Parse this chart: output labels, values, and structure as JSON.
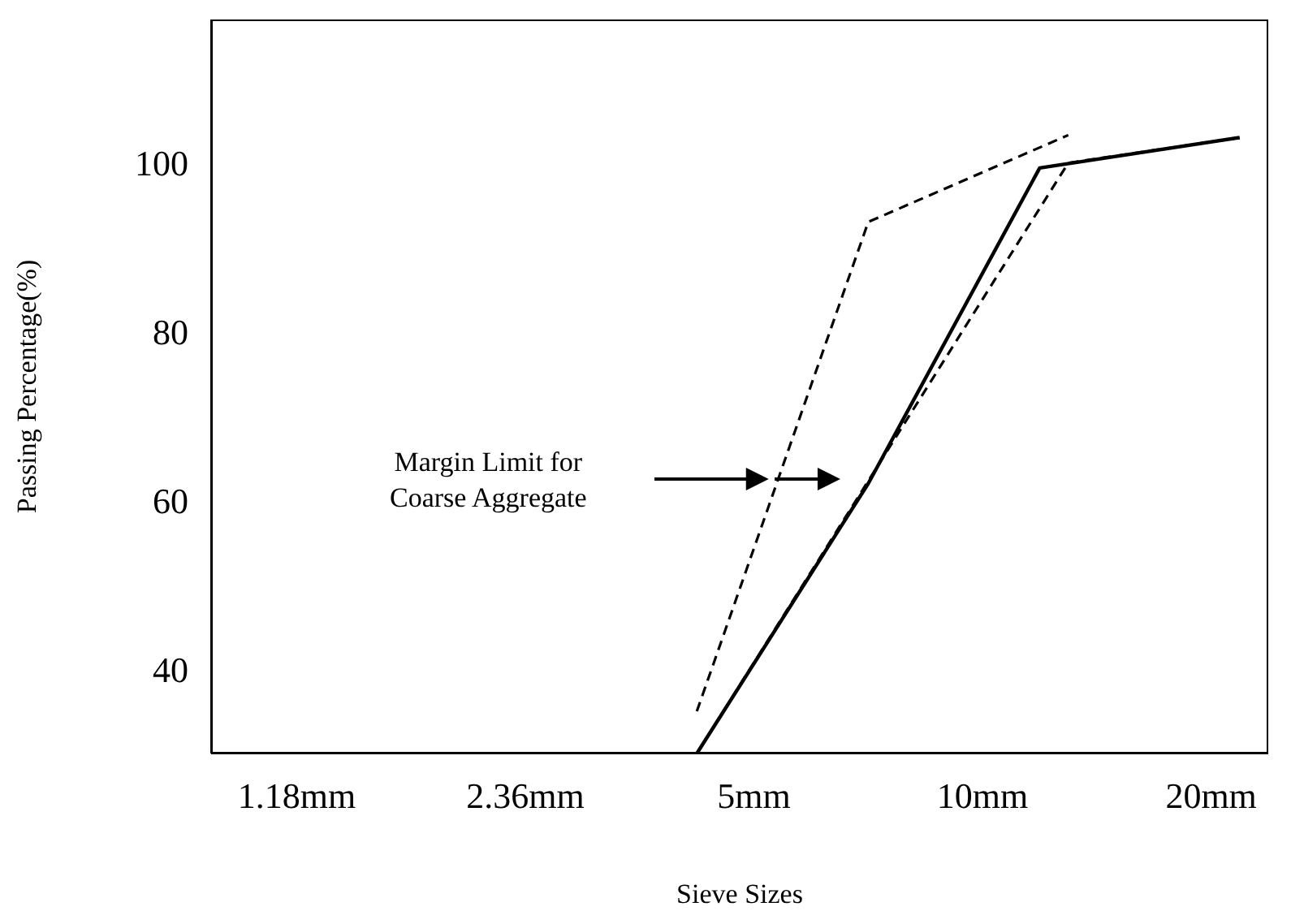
{
  "chart_data": {
    "type": "line",
    "xlabel": "Sieve Sizes",
    "ylabel": "Passing Percentage(%)",
    "categories": [
      null,
      null,
      null,
      "1.18mm",
      null,
      null,
      null,
      null,
      null,
      null,
      null,
      "2.36mm",
      null,
      null,
      null,
      null,
      null,
      null,
      null,
      "5mm",
      null,
      null,
      null,
      null,
      null,
      null,
      null,
      "10mm",
      null,
      null,
      null,
      null,
      null,
      null,
      null,
      "20mm",
      null,
      null
    ],
    "ylim": [
      30,
      117
    ],
    "yticks": [
      40,
      60,
      80,
      100
    ],
    "series": [
      {
        "color": "#000000",
        "line_style": "solid",
        "values": [
          null,
          null,
          null,
          null,
          null,
          null,
          null,
          null,
          null,
          null,
          null,
          null,
          null,
          null,
          null,
          null,
          null,
          30,
          null,
          null,
          null,
          null,
          null,
          62,
          null,
          null,
          null,
          null,
          null,
          99.4,
          null,
          null,
          null,
          null,
          null,
          null,
          103,
          null
        ]
      },
      {
        "color": "#000000",
        "line_style": "dashed",
        "values": [
          null,
          null,
          null,
          null,
          null,
          null,
          null,
          null,
          null,
          null,
          null,
          null,
          null,
          null,
          null,
          null,
          null,
          35,
          null,
          null,
          null,
          null,
          null,
          93,
          null,
          null,
          null,
          null,
          null,
          null,
          103.3,
          null,
          null,
          null,
          null,
          null,
          null,
          null
        ]
      },
      {
        "color": "#000000",
        "line_style": "dashed",
        "values": [
          null,
          null,
          null,
          null,
          null,
          null,
          null,
          null,
          null,
          null,
          null,
          null,
          null,
          null,
          null,
          null,
          null,
          30,
          null,
          null,
          null,
          null,
          null,
          null,
          null,
          null,
          null,
          null,
          null,
          null,
          100,
          null,
          null,
          null,
          null,
          null,
          103,
          null
        ]
      }
    ],
    "annotations": [
      "Margin Limit for Coarse Aggregate"
    ],
    "marker": "none"
  }
}
